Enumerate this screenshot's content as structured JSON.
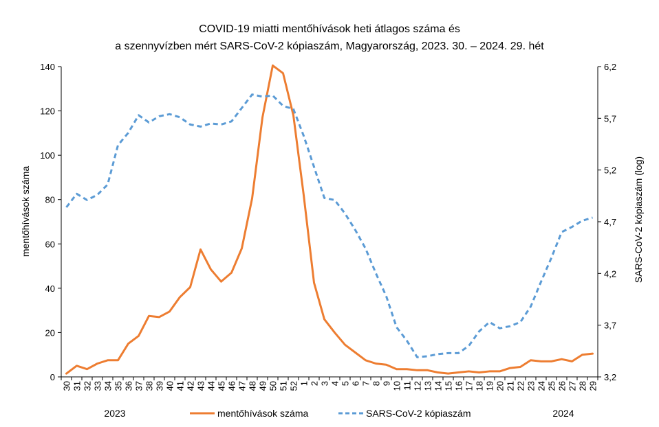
{
  "chart_data": {
    "type": "line",
    "title_line1": "COVID-19 miatti mentőhívások heti átlagos száma és",
    "title_line2": "a szennyvízben mért SARS-CoV-2 kópiaszám, Magyarország, 2023. 30. – 2024. 29. hét",
    "ylabel_left": "mentőhívások száma",
    "ylabel_right": "SARS-CoV-2 kópiaszám (log)",
    "year_labels": [
      "2023",
      "2024"
    ],
    "ylim_left": [
      0,
      140
    ],
    "yticks_left": [
      "0",
      "20",
      "40",
      "60",
      "80",
      "100",
      "120",
      "140"
    ],
    "ylim_right": [
      3.2,
      6.2
    ],
    "yticks_right": [
      "3,2",
      "3,7",
      "4,2",
      "4,7",
      "5,2",
      "5,7",
      "6,2"
    ],
    "categories": [
      "30",
      "31",
      "32",
      "33",
      "34",
      "35",
      "36",
      "37",
      "38",
      "39",
      "40",
      "41",
      "42",
      "43",
      "44",
      "45",
      "46",
      "47",
      "48",
      "49",
      "50",
      "51",
      "52",
      "1",
      "2",
      "3",
      "4",
      "5",
      "6",
      "7",
      "8",
      "9",
      "10",
      "11",
      "12",
      "13",
      "14",
      "15",
      "16",
      "17",
      "18",
      "19",
      "20",
      "21",
      "22",
      "23",
      "24",
      "25",
      "26",
      "27",
      "28",
      "29"
    ],
    "series": [
      {
        "name": "mentőhívások száma",
        "axis": "left",
        "color": "#ED7D31",
        "style": "solid",
        "values": [
          1.5,
          5,
          3.5,
          6,
          7.5,
          7.5,
          15,
          18.5,
          27.5,
          27,
          29.5,
          36,
          40.5,
          57.5,
          48.5,
          43,
          47,
          58,
          80.5,
          117,
          140.5,
          137,
          118,
          82,
          42.5,
          26,
          20,
          14.5,
          11,
          7.5,
          6,
          5.5,
          3.5,
          3.5,
          3,
          3,
          2,
          1.5,
          2,
          2.5,
          2,
          2.5,
          2.5,
          4,
          4.5,
          7.5,
          7,
          7,
          8,
          7,
          10,
          10.5
        ]
      },
      {
        "name": "SARS-CoV-2 kópiaszám",
        "axis": "right",
        "color": "#5B9BD5",
        "style": "dashed",
        "values": [
          4.84,
          4.97,
          4.91,
          4.96,
          5.06,
          5.44,
          5.56,
          5.73,
          5.66,
          5.72,
          5.74,
          5.71,
          5.64,
          5.62,
          5.65,
          5.64,
          5.67,
          5.8,
          5.93,
          5.91,
          5.92,
          5.82,
          5.79,
          5.53,
          5.23,
          4.93,
          4.91,
          4.78,
          4.62,
          4.44,
          4.2,
          3.98,
          3.68,
          3.55,
          3.39,
          3.4,
          3.42,
          3.43,
          3.43,
          3.5,
          3.64,
          3.73,
          3.67,
          3.69,
          3.73,
          3.88,
          4.12,
          4.35,
          4.6,
          4.65,
          4.71,
          4.74
        ]
      }
    ],
    "legend_position": "bottom"
  }
}
